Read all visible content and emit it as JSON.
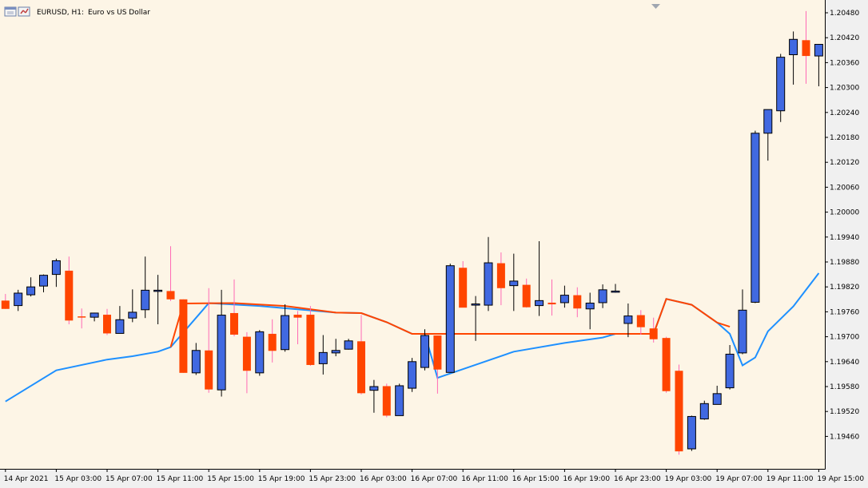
{
  "window": {
    "symbol_label": "EURUSD, H1:",
    "description": "Euro vs US Dollar"
  },
  "colors": {
    "background": "#fdf5e6",
    "bull_candle": "#4169e1",
    "bear_candle": "#ff4500",
    "bull_wick": "#000000",
    "bear_wick": "#ff69b4",
    "upper_line": "#ff4500",
    "lower_line": "#1e90ff",
    "axis": "#000000",
    "frame_bg": "#f0f0f0"
  },
  "icons": [
    "chart-window-icon",
    "chart-properties-icon"
  ],
  "chart_data": {
    "type": "candlestick",
    "symbol": "EURUSD",
    "timeframe": "H1",
    "y_ticks": [
      "1.20480",
      "1.20420",
      "1.20360",
      "1.20300",
      "1.20240",
      "1.20180",
      "1.20120",
      "1.20060",
      "1.20000",
      "1.19940",
      "1.19880",
      "1.19820",
      "1.19760",
      "1.19700",
      "1.19640",
      "1.19580",
      "1.19520",
      "1.19460"
    ],
    "ylim": [
      1.194,
      1.205
    ],
    "x_ticks": [
      {
        "label": "14 Apr 2021",
        "index": 0
      },
      {
        "label": "15 Apr 03:00",
        "index": 4
      },
      {
        "label": "15 Apr 07:00",
        "index": 8
      },
      {
        "label": "15 Apr 11:00",
        "index": 12
      },
      {
        "label": "15 Apr 15:00",
        "index": 16
      },
      {
        "label": "15 Apr 19:00",
        "index": 20
      },
      {
        "label": "15 Apr 23:00",
        "index": 24
      },
      {
        "label": "16 Apr 03:00",
        "index": 28
      },
      {
        "label": "16 Apr 07:00",
        "index": 32
      },
      {
        "label": "16 Apr 11:00",
        "index": 36
      },
      {
        "label": "16 Apr 15:00",
        "index": 40
      },
      {
        "label": "16 Apr 19:00",
        "index": 44
      },
      {
        "label": "16 Apr 23:00",
        "index": 48
      },
      {
        "label": "19 Apr 03:00",
        "index": 52
      },
      {
        "label": "19 Apr 07:00",
        "index": 56
      },
      {
        "label": "19 Apr 11:00",
        "index": 60
      },
      {
        "label": "19 Apr 15:00",
        "index": 64
      }
    ],
    "candles": [
      {
        "o": 1.19787,
        "h": 1.19803,
        "l": 1.19767,
        "c": 1.19767
      },
      {
        "o": 1.19775,
        "h": 1.19813,
        "l": 1.19762,
        "c": 1.19805
      },
      {
        "o": 1.19801,
        "h": 1.19843,
        "l": 1.19797,
        "c": 1.1982
      },
      {
        "o": 1.19822,
        "h": 1.1985,
        "l": 1.19807,
        "c": 1.19848
      },
      {
        "o": 1.1985,
        "h": 1.19888,
        "l": 1.1982,
        "c": 1.19883
      },
      {
        "o": 1.19859,
        "h": 1.19893,
        "l": 1.1973,
        "c": 1.19739
      },
      {
        "o": 1.19749,
        "h": 1.19768,
        "l": 1.1972,
        "c": 1.19747
      },
      {
        "o": 1.19747,
        "h": 1.19758,
        "l": 1.19737,
        "c": 1.19757
      },
      {
        "o": 1.19753,
        "h": 1.19767,
        "l": 1.19704,
        "c": 1.19708
      },
      {
        "o": 1.19708,
        "h": 1.19774,
        "l": 1.19708,
        "c": 1.19741
      },
      {
        "o": 1.19745,
        "h": 1.19814,
        "l": 1.19735,
        "c": 1.19759
      },
      {
        "o": 1.19765,
        "h": 1.19893,
        "l": 1.19745,
        "c": 1.19812
      },
      {
        "o": 1.19811,
        "h": 1.19849,
        "l": 1.1973,
        "c": 1.19812
      },
      {
        "o": 1.1981,
        "h": 1.19918,
        "l": 1.19786,
        "c": 1.1979
      },
      {
        "o": 1.1979,
        "h": 1.1979,
        "l": 1.19613,
        "c": 1.19613
      },
      {
        "o": 1.19613,
        "h": 1.19685,
        "l": 1.19608,
        "c": 1.19667
      },
      {
        "o": 1.19667,
        "h": 1.19817,
        "l": 1.19565,
        "c": 1.19573
      },
      {
        "o": 1.19572,
        "h": 1.19813,
        "l": 1.19556,
        "c": 1.19752
      },
      {
        "o": 1.19757,
        "h": 1.19838,
        "l": 1.19701,
        "c": 1.19705
      },
      {
        "o": 1.197,
        "h": 1.19711,
        "l": 1.19564,
        "c": 1.19618
      },
      {
        "o": 1.19613,
        "h": 1.19716,
        "l": 1.19606,
        "c": 1.19712
      },
      {
        "o": 1.19707,
        "h": 1.19742,
        "l": 1.19638,
        "c": 1.19666
      },
      {
        "o": 1.19669,
        "h": 1.19778,
        "l": 1.19664,
        "c": 1.19751
      },
      {
        "o": 1.19753,
        "h": 1.19762,
        "l": 1.19682,
        "c": 1.19746
      },
      {
        "o": 1.19753,
        "h": 1.19774,
        "l": 1.1963,
        "c": 1.19632
      },
      {
        "o": 1.19635,
        "h": 1.19704,
        "l": 1.19609,
        "c": 1.19662
      },
      {
        "o": 1.19661,
        "h": 1.19695,
        "l": 1.19653,
        "c": 1.19667
      },
      {
        "o": 1.1967,
        "h": 1.19695,
        "l": 1.19669,
        "c": 1.1969
      },
      {
        "o": 1.19689,
        "h": 1.19752,
        "l": 1.19561,
        "c": 1.19564
      },
      {
        "o": 1.19571,
        "h": 1.19596,
        "l": 1.19517,
        "c": 1.1958
      },
      {
        "o": 1.19581,
        "h": 1.19587,
        "l": 1.19506,
        "c": 1.1951
      },
      {
        "o": 1.1951,
        "h": 1.19587,
        "l": 1.1951,
        "c": 1.19582
      },
      {
        "o": 1.19576,
        "h": 1.19649,
        "l": 1.19567,
        "c": 1.1964
      },
      {
        "o": 1.19626,
        "h": 1.19718,
        "l": 1.19619,
        "c": 1.19703
      },
      {
        "o": 1.19703,
        "h": 1.19703,
        "l": 1.19563,
        "c": 1.19621
      },
      {
        "o": 1.19614,
        "h": 1.19876,
        "l": 1.19615,
        "c": 1.19871
      },
      {
        "o": 1.19866,
        "h": 1.19882,
        "l": 1.19771,
        "c": 1.1977
      },
      {
        "o": 1.19776,
        "h": 1.19798,
        "l": 1.1969,
        "c": 1.19779
      },
      {
        "o": 1.19776,
        "h": 1.1994,
        "l": 1.19762,
        "c": 1.19878
      },
      {
        "o": 1.19877,
        "h": 1.19903,
        "l": 1.19776,
        "c": 1.19817
      },
      {
        "o": 1.19823,
        "h": 1.199,
        "l": 1.19762,
        "c": 1.19834
      },
      {
        "o": 1.19825,
        "h": 1.1984,
        "l": 1.1977,
        "c": 1.19771
      },
      {
        "o": 1.19775,
        "h": 1.1993,
        "l": 1.1975,
        "c": 1.19787
      },
      {
        "o": 1.19782,
        "h": 1.19838,
        "l": 1.19751,
        "c": 1.19778
      },
      {
        "o": 1.19782,
        "h": 1.19823,
        "l": 1.1977,
        "c": 1.198
      },
      {
        "o": 1.198,
        "h": 1.19819,
        "l": 1.19747,
        "c": 1.19768
      },
      {
        "o": 1.19767,
        "h": 1.19806,
        "l": 1.19718,
        "c": 1.19781
      },
      {
        "o": 1.19782,
        "h": 1.19826,
        "l": 1.19769,
        "c": 1.19813
      },
      {
        "o": 1.1981,
        "h": 1.19827,
        "l": 1.19806,
        "c": 1.1981
      },
      {
        "o": 1.19732,
        "h": 1.1978,
        "l": 1.19699,
        "c": 1.1975
      },
      {
        "o": 1.19752,
        "h": 1.19764,
        "l": 1.19705,
        "c": 1.19723
      },
      {
        "o": 1.1972,
        "h": 1.19746,
        "l": 1.19686,
        "c": 1.19694
      },
      {
        "o": 1.19697,
        "h": 1.197,
        "l": 1.19565,
        "c": 1.19569
      },
      {
        "o": 1.19618,
        "h": 1.19633,
        "l": 1.19416,
        "c": 1.19424
      },
      {
        "o": 1.1943,
        "h": 1.1951,
        "l": 1.19425,
        "c": 1.19508
      },
      {
        "o": 1.19502,
        "h": 1.19546,
        "l": 1.195,
        "c": 1.19539
      },
      {
        "o": 1.19537,
        "h": 1.19582,
        "l": 1.19537,
        "c": 1.19563
      },
      {
        "o": 1.19577,
        "h": 1.1968,
        "l": 1.19573,
        "c": 1.19658
      },
      {
        "o": 1.19661,
        "h": 1.19814,
        "l": 1.19658,
        "c": 1.19764
      },
      {
        "o": 1.19783,
        "h": 1.20196,
        "l": 1.19781,
        "c": 1.2019
      },
      {
        "o": 1.2019,
        "h": 1.20247,
        "l": 1.20124,
        "c": 1.20247
      },
      {
        "o": 1.20244,
        "h": 1.20381,
        "l": 1.20217,
        "c": 1.20373
      },
      {
        "o": 1.20379,
        "h": 1.20435,
        "l": 1.20307,
        "c": 1.20416
      },
      {
        "o": 1.20414,
        "h": 1.20484,
        "l": 1.20309,
        "c": 1.20376
      },
      {
        "o": 1.20376,
        "h": 1.20405,
        "l": 1.20303,
        "c": 1.20404
      }
    ],
    "indicator_lines": [
      {
        "color_key": "lower_line",
        "points": [
          [
            0,
            1.19544
          ],
          [
            4,
            1.19619
          ],
          [
            8,
            1.19645
          ],
          [
            10,
            1.19653
          ],
          [
            12,
            1.19664
          ],
          [
            13,
            1.19675
          ],
          [
            16,
            1.19781
          ],
          [
            20,
            1.19774
          ],
          [
            26,
            1.19758
          ],
          [
            28,
            1.19757
          ],
          [
            30,
            1.19735
          ],
          [
            32,
            1.19707
          ],
          [
            33,
            1.19707
          ],
          [
            34,
            1.19601
          ],
          [
            36,
            1.19622
          ],
          [
            40,
            1.19664
          ],
          [
            44,
            1.19685
          ],
          [
            47,
            1.19698
          ],
          [
            48,
            1.19707
          ],
          [
            50,
            1.19707
          ],
          [
            51,
            1.19707
          ],
          [
            52,
            1.19791
          ],
          [
            54,
            1.19777
          ],
          [
            56,
            1.19734
          ],
          [
            57,
            1.19707
          ],
          [
            58,
            1.19631
          ],
          [
            59,
            1.1965
          ],
          [
            60,
            1.19713
          ],
          [
            62,
            1.19773
          ],
          [
            64,
            1.19853
          ]
        ]
      },
      {
        "color_key": "upper_line",
        "points": [
          [
            13,
            1.19675
          ],
          [
            14,
            1.1978
          ],
          [
            18,
            1.19781
          ],
          [
            22,
            1.19774
          ],
          [
            26,
            1.19758
          ],
          [
            28,
            1.19757
          ],
          [
            30,
            1.19735
          ],
          [
            32,
            1.19707
          ],
          [
            33,
            1.19707
          ],
          [
            50,
            1.19707
          ],
          [
            51,
            1.19707
          ],
          [
            52,
            1.19791
          ],
          [
            54,
            1.19777
          ],
          [
            56,
            1.19734
          ],
          [
            57,
            1.19724
          ]
        ]
      }
    ]
  }
}
